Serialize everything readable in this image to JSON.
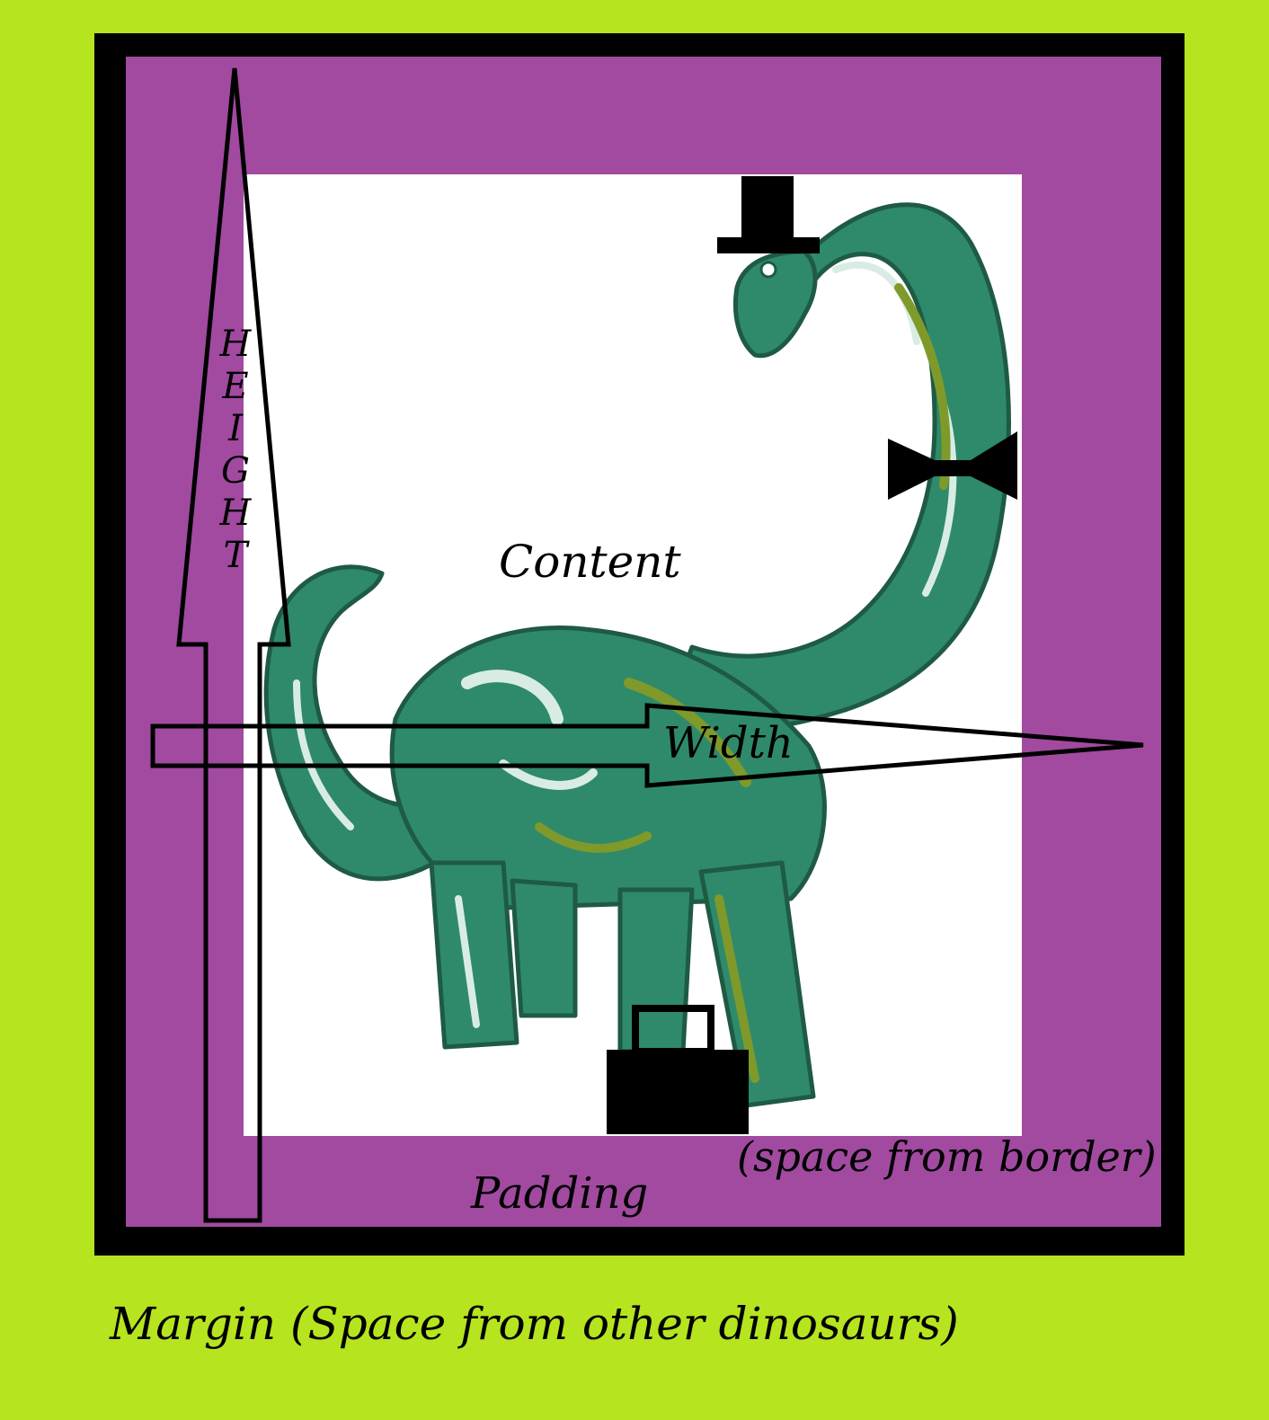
{
  "labels": {
    "content": "Content",
    "height": "HEIGHT",
    "width": "Width",
    "padding": "Padding",
    "space_from_border": "(space from border)",
    "margin": "Margin (Space from other dinosaurs)"
  },
  "colors": {
    "margin": "#b6e41f",
    "border": "#000000",
    "padding": "#a14aa0",
    "content": "#ffffff",
    "dinosaur": "#2e8a6a",
    "dinosaur_highlight": "#d9ece4",
    "dinosaur_shade": "#7f9a2a"
  },
  "icons": [
    "top-hat-icon",
    "bow-tie-icon",
    "briefcase-icon",
    "height-arrow-icon",
    "width-arrow-icon",
    "dinosaur-illustration"
  ]
}
